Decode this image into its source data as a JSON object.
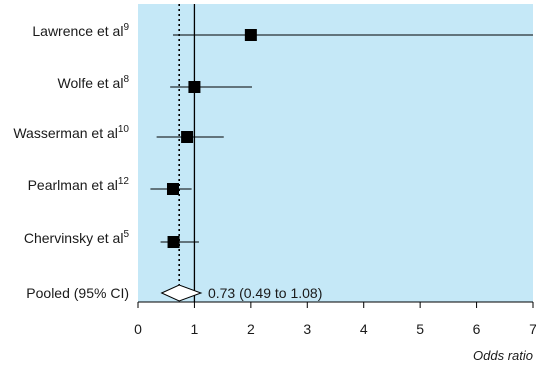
{
  "chart_data": {
    "type": "forest",
    "xlabel": "Odds ratio",
    "xlim": [
      0,
      7
    ],
    "x_ticks": [
      "0",
      "1",
      "2",
      "3",
      "4",
      "5",
      "6",
      "7"
    ],
    "reference_line": 1,
    "pooled_line": 0.73,
    "background": "#c5e8f7",
    "studies": [
      {
        "name": "Lawrence et al",
        "ref": "9",
        "or": 2.0,
        "lo": 0.62,
        "hi": 7.0
      },
      {
        "name": "Wolfe et al",
        "ref": "8",
        "or": 1.0,
        "lo": 0.57,
        "hi": 2.02
      },
      {
        "name": "Wasserman et al",
        "ref": "10",
        "or": 0.87,
        "lo": 0.33,
        "hi": 1.52
      },
      {
        "name": "Pearlman et al",
        "ref": "12",
        "or": 0.62,
        "lo": 0.22,
        "hi": 0.95
      },
      {
        "name": "Chervinsky et al",
        "ref": "5",
        "or": 0.63,
        "lo": 0.4,
        "hi": 1.08
      }
    ],
    "pooled": {
      "label": "Pooled (95% CI)",
      "or": 0.73,
      "lo": 0.49,
      "hi": 1.08,
      "text": "0.73 (0.49 to 1.08)"
    }
  }
}
